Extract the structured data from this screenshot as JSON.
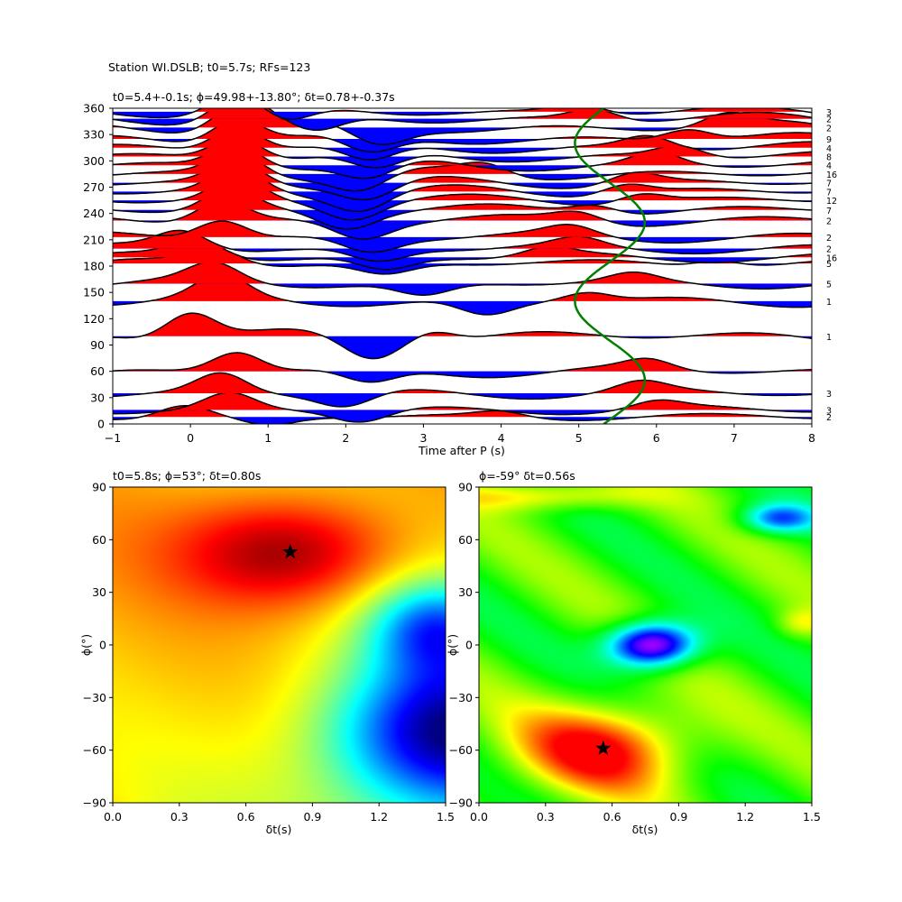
{
  "figure": {
    "suptitle": "Station WI.DSLB; t0=5.7s; RFs=123"
  },
  "chart_data": [
    {
      "type": "line",
      "title": "t0=5.4+-0.1s; ϕ=49.98+-13.80°; δt=0.78+-0.37s",
      "xlabel": "Time after P (s)",
      "ylabel": "",
      "xlim": [
        -1,
        8
      ],
      "ylim": [
        0,
        360
      ],
      "xticks": [
        "−1",
        "0",
        "1",
        "2",
        "3",
        "4",
        "5",
        "6",
        "7",
        "8"
      ],
      "yticks": [
        "0",
        "30",
        "60",
        "90",
        "120",
        "150",
        "180",
        "210",
        "240",
        "270",
        "300",
        "330",
        "360"
      ],
      "traces": [
        {
          "baz": 8,
          "count": "2",
          "amp": 0.35,
          "peak1": -0.1,
          "peak2": 4.0,
          "trough": 1.0
        },
        {
          "baz": 16,
          "count": "3",
          "amp": 0.45,
          "peak1": 0.5,
          "peak2": 6.0,
          "trough": 2.2
        },
        {
          "baz": 35,
          "count": "3",
          "amp": 0.55,
          "peak1": 0.4,
          "peak2": 5.8,
          "trough": 2.0
        },
        {
          "baz": 60,
          "count": "",
          "amp": 0.6,
          "peak1": 0.6,
          "peak2": 5.9,
          "trough": 2.3
        },
        {
          "baz": 100,
          "count": "1",
          "amp": 0.75,
          "peak1": 0.0,
          "peak2": 3.1,
          "trough": 2.3
        },
        {
          "baz": 140,
          "count": "1",
          "amp": 0.6,
          "peak1": 0.4,
          "peak2": 5.1,
          "trough": 3.8
        },
        {
          "baz": 160,
          "count": "5",
          "amp": 0.5,
          "peak1": 0.3,
          "peak2": 5.7,
          "trough": 3.0
        },
        {
          "baz": 183,
          "count": "5",
          "amp": 0.45,
          "peak1": 0.3,
          "peak2": 6.8,
          "trough": 2.5
        },
        {
          "baz": 190,
          "count": "16",
          "amp": 0.5,
          "peak1": 0.1,
          "peak2": 4.6,
          "trough": 2.5
        },
        {
          "baz": 200,
          "count": "2",
          "amp": 0.5,
          "peak1": -0.1,
          "peak2": 5.0,
          "trough": 2.4
        },
        {
          "baz": 213,
          "count": "2",
          "amp": 0.55,
          "peak1": 0.4,
          "peak2": 4.9,
          "trough": 2.3
        },
        {
          "baz": 232,
          "count": "2",
          "amp": 0.6,
          "peak1": 0.4,
          "peak2": 5.0,
          "trough": 2.2
        },
        {
          "baz": 244,
          "count": "7",
          "amp": 0.6,
          "peak1": 0.5,
          "peak2": 5.2,
          "trough": 2.0
        },
        {
          "baz": 255,
          "count": "12",
          "amp": 0.6,
          "peak1": 0.6,
          "peak2": 5.8,
          "trough": 2.1
        },
        {
          "baz": 265,
          "count": "7",
          "amp": 0.65,
          "peak1": 0.6,
          "peak2": 5.6,
          "trough": 2.2
        },
        {
          "baz": 275,
          "count": "7",
          "amp": 0.65,
          "peak1": 0.6,
          "peak2": 5.7,
          "trough": 2.3
        },
        {
          "baz": 285,
          "count": "16",
          "amp": 0.7,
          "peak1": 0.6,
          "peak2": 3.8,
          "trough": 2.2
        },
        {
          "baz": 295,
          "count": "4",
          "amp": 0.7,
          "peak1": 0.6,
          "peak2": 6.0,
          "trough": 2.3
        },
        {
          "baz": 305,
          "count": "8",
          "amp": 0.7,
          "peak1": 0.6,
          "peak2": 6.3,
          "trough": 2.4
        },
        {
          "baz": 315,
          "count": "4",
          "amp": 0.75,
          "peak1": 0.6,
          "peak2": 5.9,
          "trough": 2.3
        },
        {
          "baz": 325,
          "count": "9",
          "amp": 0.75,
          "peak1": 0.6,
          "peak2": 6.4,
          "trough": 2.3
        },
        {
          "baz": 338,
          "count": "2",
          "amp": 0.75,
          "peak1": 0.6,
          "peak2": 6.9,
          "trough": 2.4
        },
        {
          "baz": 348,
          "count": "2",
          "amp": 0.7,
          "peak1": 0.6,
          "peak2": 5.2,
          "trough": 1.6
        },
        {
          "baz": 356,
          "count": "3",
          "amp": 0.6,
          "peak1": 0.6,
          "peak2": 5.0,
          "trough": 1.2
        }
      ],
      "model_curve": {
        "t0": 5.4,
        "amplitude": 0.45,
        "phi": 49.98,
        "color": "#008000"
      },
      "fill_positive": "#ff0000",
      "fill_negative": "#0000ff"
    },
    {
      "type": "heatmap",
      "title": "t0=5.8s; ϕ=53°; δt=0.80s",
      "xlabel": "δt(s)",
      "ylabel": "ϕ(°)",
      "xlim": [
        0.0,
        1.5
      ],
      "ylim": [
        -90,
        90
      ],
      "xticks": [
        "0.0",
        "0.3",
        "0.6",
        "0.9",
        "1.2",
        "1.5"
      ],
      "yticks": [
        "−90",
        "−60",
        "−30",
        "0",
        "30",
        "60",
        "90"
      ],
      "colormap": "jet",
      "best": {
        "dt": 0.8,
        "phi": 53
      },
      "maxima": [
        {
          "dt": 0.8,
          "phi": 53,
          "value": 1.0
        }
      ],
      "minima": [
        {
          "dt": 1.5,
          "phi": -50,
          "value": 0.0
        },
        {
          "dt": 1.45,
          "phi": 10,
          "value": 0.3
        }
      ]
    },
    {
      "type": "heatmap",
      "title": "ϕ=-59° δt=0.56s",
      "xlabel": "δt(s)",
      "ylabel": "ϕ(°)",
      "xlim": [
        0.0,
        1.5
      ],
      "ylim": [
        -90,
        90
      ],
      "xticks": [
        "0.0",
        "0.3",
        "0.6",
        "0.9",
        "1.2",
        "1.5"
      ],
      "yticks": [
        "−90",
        "−60",
        "−30",
        "0",
        "30",
        "60",
        "90"
      ],
      "colormap": "hsv",
      "best": {
        "dt": 0.56,
        "phi": -59
      },
      "maxima": [
        {
          "dt": 0.56,
          "phi": -59,
          "value": 0.0
        }
      ],
      "minima": [
        {
          "dt": 0.78,
          "phi": 0,
          "value": 0.85
        },
        {
          "dt": 1.35,
          "phi": 72,
          "value": 0.6
        }
      ]
    }
  ]
}
